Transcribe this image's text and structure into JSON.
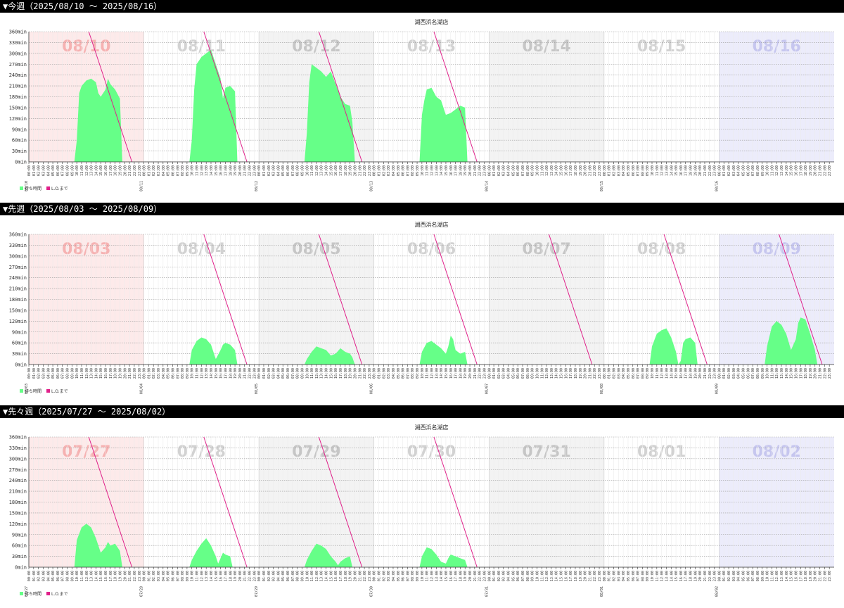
{
  "colors": {
    "wait": "#66ff88",
    "lo": "#e0218a",
    "sunday_bg": "#fdeaea",
    "saturday_bg": "#ececfb",
    "alt_bg": "#f3f3f3",
    "label_normal": "#d2d2d2",
    "label_alt": "#c6c6c6",
    "label_sunday": "#f6b2b2",
    "label_saturday": "#c6c6ef"
  },
  "chart_data": [
    {
      "type": "area",
      "header": "▼今週（2025/08/10 〜 2025/08/16）",
      "title": "湖西浜名湖店",
      "ylim": [
        0,
        360
      ],
      "yticks": [
        "0min",
        "30min",
        "60min",
        "90min",
        "120min",
        "150min",
        "180min",
        "210min",
        "240min",
        "270min",
        "300min",
        "330min",
        "360min"
      ],
      "legend": [
        {
          "name": "待ち時間"
        },
        {
          "name": "L.O.まで"
        }
      ],
      "days": [
        {
          "label": "08/10",
          "kind": "sun",
          "date_tick": "08/10",
          "wait": [
            [
              9.5,
              0
            ],
            [
              10,
              60
            ],
            [
              10.5,
              190
            ],
            [
              11,
              210
            ],
            [
              12,
              225
            ],
            [
              13,
              230
            ],
            [
              14,
              220
            ],
            [
              14.5,
              190
            ],
            [
              15,
              180
            ],
            [
              16,
              200
            ],
            [
              16.5,
              230
            ],
            [
              17,
              215
            ],
            [
              18,
              200
            ],
            [
              19,
              175
            ],
            [
              19.5,
              0
            ]
          ],
          "lo": [
            [
              12.5,
              360
            ],
            [
              21.5,
              0
            ]
          ]
        },
        {
          "label": "08/11",
          "kind": "norm",
          "date_tick": "08/11",
          "wait": [
            [
              9.5,
              0
            ],
            [
              10,
              60
            ],
            [
              10.5,
              200
            ],
            [
              11,
              270
            ],
            [
              12,
              290
            ],
            [
              13,
              300
            ],
            [
              14,
              310
            ],
            [
              15,
              270
            ],
            [
              16,
              230
            ],
            [
              16.5,
              175
            ],
            [
              17,
              205
            ],
            [
              18,
              210
            ],
            [
              19,
              195
            ],
            [
              19.5,
              0
            ]
          ],
          "lo": [
            [
              12.5,
              360
            ],
            [
              21.5,
              0
            ]
          ]
        },
        {
          "label": "08/12",
          "kind": "alt",
          "date_tick": "08/12",
          "wait": [
            [
              9.5,
              0
            ],
            [
              10,
              80
            ],
            [
              10.5,
              220
            ],
            [
              11,
              270
            ],
            [
              12,
              260
            ],
            [
              13,
              250
            ],
            [
              14,
              235
            ],
            [
              15,
              250
            ],
            [
              16,
              215
            ],
            [
              17,
              180
            ],
            [
              18,
              160
            ],
            [
              19,
              155
            ],
            [
              19.5,
              110
            ],
            [
              20,
              0
            ]
          ],
          "lo": [
            [
              12.5,
              360
            ],
            [
              21.5,
              0
            ]
          ]
        },
        {
          "label": "08/13",
          "kind": "norm",
          "date_tick": "08/13",
          "wait": [
            [
              9.5,
              0
            ],
            [
              10,
              130
            ],
            [
              10.5,
              170
            ],
            [
              11,
              200
            ],
            [
              12,
              205
            ],
            [
              13,
              180
            ],
            [
              14,
              170
            ],
            [
              15,
              130
            ],
            [
              16,
              135
            ],
            [
              17,
              145
            ],
            [
              18,
              155
            ],
            [
              19,
              150
            ],
            [
              19.5,
              0
            ]
          ],
          "lo": [
            [
              12.5,
              360
            ],
            [
              21.5,
              0
            ]
          ]
        },
        {
          "label": "08/14",
          "kind": "alt",
          "date_tick": "08/14",
          "wait": [],
          "lo": []
        },
        {
          "label": "08/15",
          "kind": "norm",
          "date_tick": "08/15",
          "wait": [],
          "lo": []
        },
        {
          "label": "08/16",
          "kind": "sat",
          "date_tick": "08/16",
          "wait": [],
          "lo": []
        }
      ]
    },
    {
      "type": "area",
      "header": "▼先週（2025/08/03 〜 2025/08/09）",
      "title": "湖西浜名湖店",
      "ylim": [
        0,
        360
      ],
      "yticks": [
        "0min",
        "30min",
        "60min",
        "90min",
        "120min",
        "150min",
        "180min",
        "210min",
        "240min",
        "270min",
        "300min",
        "330min",
        "360min"
      ],
      "legend": [
        {
          "name": "待ち時間"
        },
        {
          "name": "L.O.まで"
        }
      ],
      "days": [
        {
          "label": "08/03",
          "kind": "sun",
          "date_tick": "08/03",
          "wait": [],
          "lo": []
        },
        {
          "label": "08/04",
          "kind": "norm",
          "date_tick": "08/04",
          "wait": [
            [
              9.5,
              0
            ],
            [
              10,
              40
            ],
            [
              11,
              65
            ],
            [
              12,
              75
            ],
            [
              13,
              70
            ],
            [
              14,
              55
            ],
            [
              14.5,
              35
            ],
            [
              15,
              15
            ],
            [
              16,
              40
            ],
            [
              16.5,
              55
            ],
            [
              17,
              60
            ],
            [
              18,
              55
            ],
            [
              19,
              40
            ],
            [
              19.5,
              0
            ]
          ],
          "lo": [
            [
              12.5,
              360
            ],
            [
              21.5,
              0
            ]
          ]
        },
        {
          "label": "08/05",
          "kind": "alt",
          "date_tick": "08/05",
          "wait": [
            [
              9.5,
              0
            ],
            [
              10,
              15
            ],
            [
              11,
              35
            ],
            [
              12,
              50
            ],
            [
              13,
              45
            ],
            [
              14,
              40
            ],
            [
              15,
              25
            ],
            [
              16,
              30
            ],
            [
              17,
              45
            ],
            [
              18,
              35
            ],
            [
              19,
              30
            ],
            [
              19.5,
              20
            ],
            [
              20,
              0
            ]
          ],
          "lo": [
            [
              12.5,
              360
            ],
            [
              21.5,
              0
            ]
          ]
        },
        {
          "label": "08/06",
          "kind": "norm",
          "date_tick": "08/06",
          "wait": [
            [
              9.5,
              0
            ],
            [
              10,
              35
            ],
            [
              11,
              60
            ],
            [
              12,
              65
            ],
            [
              13,
              55
            ],
            [
              14,
              45
            ],
            [
              15,
              30
            ],
            [
              15.5,
              50
            ],
            [
              16,
              80
            ],
            [
              16.5,
              70
            ],
            [
              17,
              40
            ],
            [
              18,
              30
            ],
            [
              19,
              35
            ],
            [
              19.5,
              0
            ]
          ],
          "lo": [
            [
              12.5,
              360
            ],
            [
              21.5,
              0
            ]
          ]
        },
        {
          "label": "08/07",
          "kind": "alt",
          "date_tick": "08/07",
          "wait": [],
          "lo": [
            [
              12.5,
              360
            ],
            [
              21.5,
              0
            ]
          ]
        },
        {
          "label": "08/08",
          "kind": "norm",
          "date_tick": "08/08",
          "wait": [
            [
              9.5,
              0
            ],
            [
              10,
              50
            ],
            [
              11,
              85
            ],
            [
              12,
              95
            ],
            [
              13,
              100
            ],
            [
              14,
              75
            ],
            [
              15,
              35
            ],
            [
              15.5,
              0
            ],
            [
              16,
              10
            ],
            [
              16.5,
              60
            ],
            [
              17,
              70
            ],
            [
              18,
              75
            ],
            [
              19,
              60
            ],
            [
              19.5,
              0
            ]
          ],
          "lo": [
            [
              12.5,
              360
            ],
            [
              21.5,
              0
            ]
          ]
        },
        {
          "label": "08/09",
          "kind": "sat",
          "date_tick": "08/09",
          "wait": [
            [
              9.5,
              0
            ],
            [
              10,
              50
            ],
            [
              11,
              105
            ],
            [
              12,
              120
            ],
            [
              13,
              110
            ],
            [
              14,
              85
            ],
            [
              15,
              40
            ],
            [
              16,
              70
            ],
            [
              16.5,
              115
            ],
            [
              17,
              130
            ],
            [
              18,
              125
            ],
            [
              19,
              85
            ],
            [
              20,
              40
            ],
            [
              20.5,
              0
            ]
          ],
          "lo": [
            [
              12.5,
              360
            ],
            [
              21.5,
              0
            ]
          ]
        }
      ]
    },
    {
      "type": "area",
      "header": "▼先々週（2025/07/27 〜 2025/08/02）",
      "title": "湖西浜名湖店",
      "ylim": [
        0,
        360
      ],
      "yticks": [
        "0min",
        "30min",
        "60min",
        "90min",
        "120min",
        "150min",
        "180min",
        "210min",
        "240min",
        "270min",
        "300min",
        "330min",
        "360min"
      ],
      "legend": [
        {
          "name": "待ち時間"
        },
        {
          "name": "L.O.まで"
        }
      ],
      "days": [
        {
          "label": "07/27",
          "kind": "sun",
          "date_tick": "07/27",
          "wait": [
            [
              9.5,
              0
            ],
            [
              10,
              75
            ],
            [
              11,
              110
            ],
            [
              12,
              120
            ],
            [
              13,
              110
            ],
            [
              14,
              80
            ],
            [
              15,
              40
            ],
            [
              16,
              55
            ],
            [
              16.5,
              70
            ],
            [
              17,
              60
            ],
            [
              18,
              65
            ],
            [
              19,
              45
            ],
            [
              19.5,
              0
            ]
          ],
          "lo": [
            [
              12.5,
              360
            ],
            [
              21.5,
              0
            ]
          ]
        },
        {
          "label": "07/28",
          "kind": "norm",
          "date_tick": "07/28",
          "wait": [
            [
              9.5,
              0
            ],
            [
              10,
              20
            ],
            [
              11,
              45
            ],
            [
              12,
              65
            ],
            [
              13,
              80
            ],
            [
              14,
              60
            ],
            [
              15,
              30
            ],
            [
              15.5,
              10
            ],
            [
              16,
              25
            ],
            [
              16.5,
              40
            ],
            [
              17,
              35
            ],
            [
              18,
              30
            ],
            [
              18.5,
              0
            ]
          ],
          "lo": [
            [
              12.5,
              360
            ],
            [
              21.5,
              0
            ]
          ]
        },
        {
          "label": "07/29",
          "kind": "alt",
          "date_tick": "07/29",
          "wait": [
            [
              9.5,
              0
            ],
            [
              10,
              20
            ],
            [
              11,
              45
            ],
            [
              12,
              65
            ],
            [
              13,
              60
            ],
            [
              14,
              50
            ],
            [
              15,
              30
            ],
            [
              16,
              15
            ],
            [
              16.5,
              5
            ],
            [
              17,
              15
            ],
            [
              18,
              25
            ],
            [
              19,
              30
            ],
            [
              19.5,
              0
            ]
          ],
          "lo": [
            [
              12.5,
              360
            ],
            [
              21.5,
              0
            ]
          ]
        },
        {
          "label": "07/30",
          "kind": "norm",
          "date_tick": "07/30",
          "wait": [
            [
              9.5,
              0
            ],
            [
              10,
              30
            ],
            [
              11,
              55
            ],
            [
              12,
              50
            ],
            [
              13,
              35
            ],
            [
              14,
              15
            ],
            [
              15,
              10
            ],
            [
              15.5,
              25
            ],
            [
              16,
              35
            ],
            [
              17,
              30
            ],
            [
              18,
              25
            ],
            [
              19,
              20
            ],
            [
              19.5,
              0
            ]
          ],
          "lo": [
            [
              12.5,
              360
            ],
            [
              21.5,
              0
            ]
          ]
        },
        {
          "label": "07/31",
          "kind": "alt",
          "date_tick": "07/31",
          "wait": [],
          "lo": []
        },
        {
          "label": "08/01",
          "kind": "norm",
          "date_tick": "08/01",
          "wait": [],
          "lo": []
        },
        {
          "label": "08/02",
          "kind": "sat",
          "date_tick": "08/02",
          "wait": [],
          "lo": []
        }
      ]
    }
  ]
}
